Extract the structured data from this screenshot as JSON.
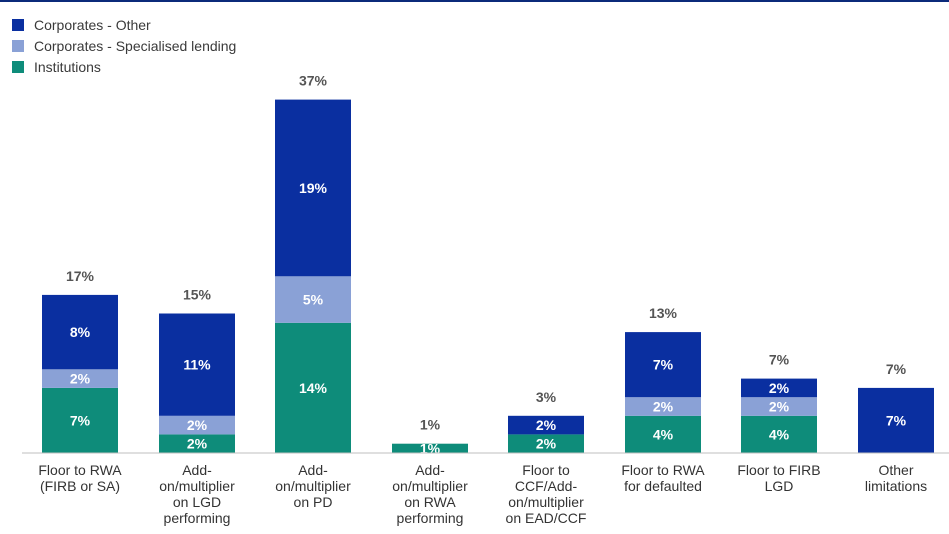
{
  "colors": {
    "corporates_other": "#0a2fa0",
    "corporates_specialised": "#8aa1d6",
    "institutions": "#0e8c7a",
    "total_label": "#555555",
    "rule": "#0b2a7a",
    "axis": "#bfbfbf"
  },
  "legend": [
    {
      "label": "Corporates - Other",
      "color": "#0a2fa0"
    },
    {
      "label": "Corporates - Specialised lending",
      "color": "#8aa1d6"
    },
    {
      "label": "Institutions",
      "color": "#0e8c7a"
    }
  ],
  "chart_data": {
    "type": "bar",
    "stacked": true,
    "title": "",
    "xlabel": "",
    "ylabel": "",
    "ylim": [
      0,
      40
    ],
    "grid": false,
    "legend_position": "top-left",
    "categories": [
      "Floor to RWA (FIRB or SA)",
      "Add-on/multiplier on LGD performing",
      "Add-on/multiplier on PD",
      "Add-on/multiplier on RWA performing",
      "Floor to CCF/Add-on/multiplier on EAD/CCF",
      "Floor to RWA for defaulted",
      "Floor to FIRB LGD",
      "Other limitations"
    ],
    "category_lines": [
      [
        "Floor to RWA",
        "(FIRB or SA)"
      ],
      [
        "Add-",
        "on/multiplier",
        "on LGD",
        "performing"
      ],
      [
        "Add-",
        "on/multiplier",
        "on PD"
      ],
      [
        "Add-",
        "on/multiplier",
        "on RWA",
        "performing"
      ],
      [
        "Floor to",
        "CCF/Add-",
        "on/multiplier",
        "on EAD/CCF"
      ],
      [
        "Floor to RWA",
        "for defaulted"
      ],
      [
        "Floor to FIRB",
        "LGD"
      ],
      [
        "Other",
        "limitations"
      ]
    ],
    "series": [
      {
        "name": "Institutions",
        "values": [
          7,
          2,
          14,
          1,
          2,
          4,
          4,
          0
        ],
        "labels": [
          "7%",
          "2%",
          "14%",
          "1%",
          "2%",
          "4%",
          "4%",
          ""
        ]
      },
      {
        "name": "Corporates - Specialised lending",
        "values": [
          2,
          2,
          5,
          0,
          0,
          2,
          2,
          0
        ],
        "labels": [
          "2%",
          "2%",
          "5%",
          "",
          "",
          "2%",
          "2%",
          ""
        ]
      },
      {
        "name": "Corporates - Other",
        "values": [
          8,
          11,
          19,
          0,
          2,
          7,
          2,
          7
        ],
        "labels": [
          "8%",
          "11%",
          "19%",
          "",
          "2%",
          "7%",
          "2%",
          "7%"
        ]
      }
    ],
    "totals": [
      17,
      15,
      37,
      1,
      3,
      13,
      7,
      7
    ],
    "total_labels": [
      "17%",
      "15%",
      "37%",
      "1%",
      "3%",
      "13%",
      "7%",
      "7%"
    ]
  }
}
